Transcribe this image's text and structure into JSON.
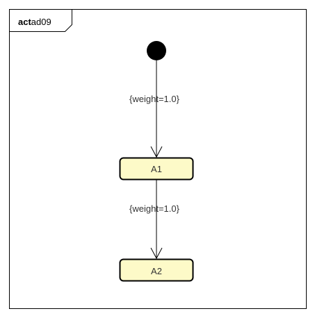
{
  "frame": {
    "keyword": "act",
    "name": "ad09"
  },
  "nodes": {
    "initial": {
      "type": "initial-node"
    },
    "a1": {
      "label": "A1"
    },
    "a2": {
      "label": "A2"
    }
  },
  "flows": [
    {
      "from": "initial",
      "to": "A1",
      "guard": "{weight=1.0}"
    },
    {
      "from": "A1",
      "to": "A2",
      "guard": "{weight=1.0}"
    }
  ],
  "colors": {
    "action_fill": "#fdfac8",
    "stroke": "#000000",
    "text": "#333333"
  }
}
